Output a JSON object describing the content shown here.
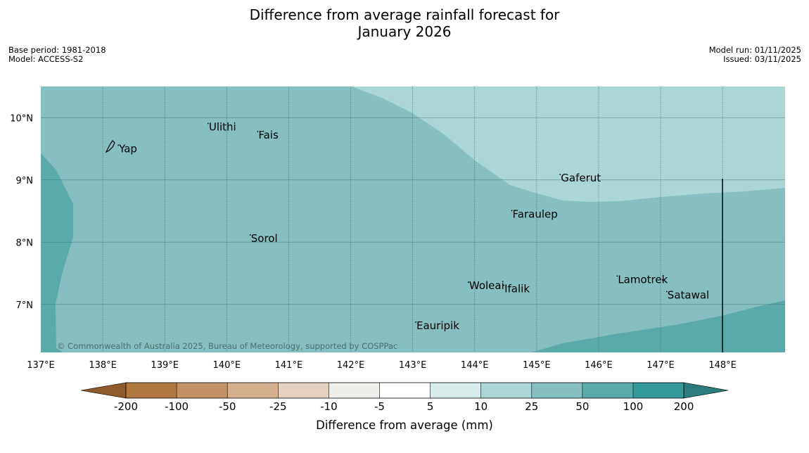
{
  "title": {
    "line1": "Difference from average rainfall forecast for",
    "line2": "January 2026"
  },
  "meta_left": {
    "base_period": "Base period: 1981-2018",
    "model": "Model: ACCESS-S2"
  },
  "meta_right": {
    "model_run": "Model run: 01/11/2025",
    "issued": "Issued: 03/11/2025"
  },
  "map": {
    "lon_range": [
      137,
      149
    ],
    "lat_range": [
      6.2,
      10.5
    ],
    "lon_ticks": [
      "137°E",
      "138°E",
      "139°E",
      "140°E",
      "141°E",
      "142°E",
      "143°E",
      "144°E",
      "145°E",
      "146°E",
      "147°E",
      "148°E"
    ],
    "lat_ticks": [
      "10°N",
      "9°N",
      "8°N",
      "7°N"
    ],
    "places": [
      {
        "name": "Yap",
        "lon": 138.25,
        "lat": 9.5
      },
      {
        "name": "Ulithi",
        "lon": 139.7,
        "lat": 9.85
      },
      {
        "name": "Fais",
        "lon": 140.5,
        "lat": 9.72
      },
      {
        "name": "Gaferut",
        "lon": 145.38,
        "lat": 9.03
      },
      {
        "name": "Faraulep",
        "lon": 144.6,
        "lat": 8.45
      },
      {
        "name": "Sorol",
        "lon": 140.38,
        "lat": 8.06
      },
      {
        "name": "Woleai",
        "lon": 143.9,
        "lat": 7.3
      },
      {
        "name": "Ifalik",
        "lon": 144.47,
        "lat": 7.25
      },
      {
        "name": "Lamotrek",
        "lon": 146.3,
        "lat": 7.4
      },
      {
        "name": "Satawal",
        "lon": 147.1,
        "lat": 7.15
      },
      {
        "name": "Eauripik",
        "lon": 143.05,
        "lat": 6.66
      }
    ],
    "copyright": "© Commonwealth of Australia 2025, Bureau of Meteorology, supported by COSPPac",
    "colors": {
      "c10_25": "#acd6d6",
      "c25_50": "#86bfbf",
      "c50_100": "#5aaaaa"
    }
  },
  "colorbar": {
    "labels": [
      "-200",
      "-100",
      "-50",
      "-25",
      "-10",
      "-5",
      "5",
      "10",
      "25",
      "50",
      "100",
      "200"
    ],
    "colors": [
      "#8e5c2a",
      "#b0773e",
      "#c29266",
      "#d4b08f",
      "#e5d1c1",
      "#f1efec",
      "#ffffff",
      "#d7ebea",
      "#acd6d6",
      "#86bfbf",
      "#5aaaaa",
      "#349a9a",
      "#2b7c7c"
    ],
    "label": "Difference from average (mm)"
  }
}
